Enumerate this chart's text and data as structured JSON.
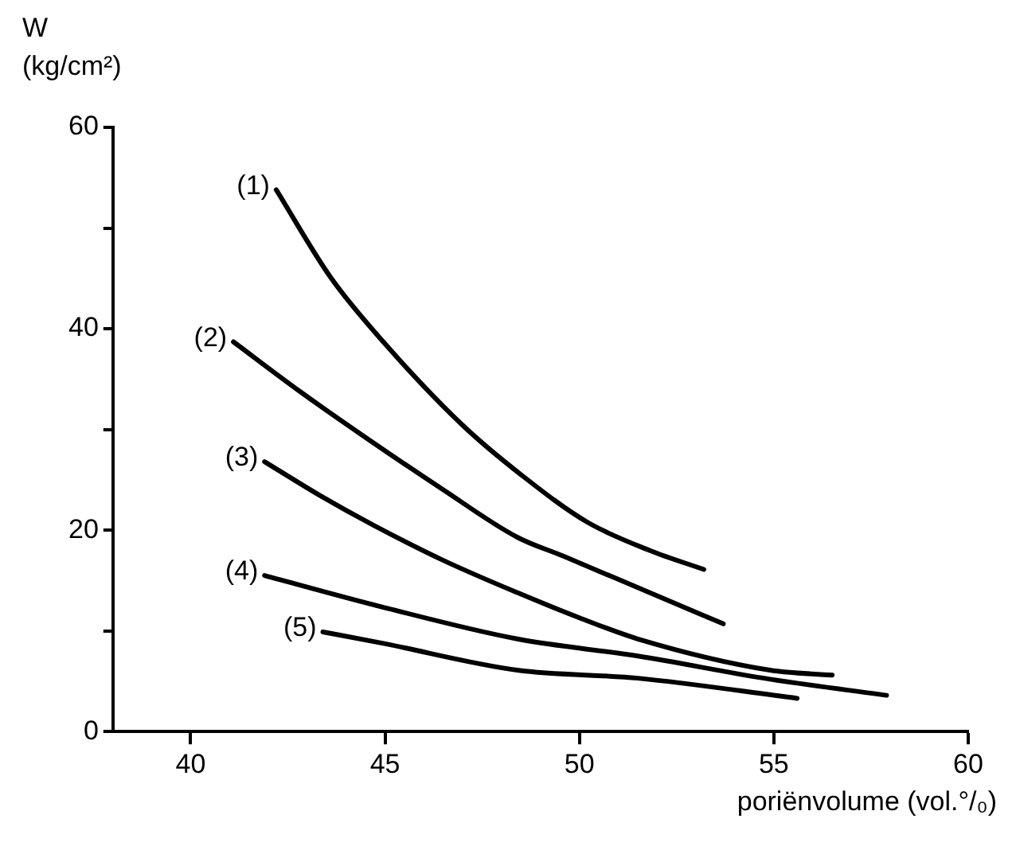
{
  "chart_data": {
    "type": "line",
    "xlabel": "poriënvolume (vol.°/₀)",
    "ylabel": "W\n(kg/cm²)",
    "xlim": [
      38,
      60
    ],
    "xticks": [
      40,
      45,
      50,
      55,
      60
    ],
    "ylim": [
      0,
      60
    ],
    "yticks": [
      0,
      {
        "value": 10,
        "label": null
      },
      20,
      {
        "value": 30,
        "label": null
      },
      40,
      {
        "value": 50,
        "label": null
      },
      60
    ],
    "legend": false,
    "marker": "none",
    "line_style": "solid",
    "series": [
      {
        "name": "(1)",
        "color": "#000000",
        "x": [
          42.2,
          43.6,
          45.0,
          47.0,
          48.5,
          50.2,
          51.8,
          53.2
        ],
        "values": [
          53.8,
          45.1,
          38.5,
          30.4,
          25.5,
          20.8,
          18.0,
          16.1
        ]
      },
      {
        "name": "(2)",
        "color": "#000000",
        "x": [
          41.1,
          42.8,
          44.5,
          46.5,
          48.4,
          49.6,
          51.8,
          53.7
        ],
        "values": [
          38.7,
          33.8,
          29.2,
          24.0,
          19.3,
          17.4,
          13.8,
          10.7
        ]
      },
      {
        "name": "(3)",
        "color": "#000000",
        "x": [
          41.9,
          43.3,
          44.7,
          46.5,
          48.4,
          50.0,
          51.5,
          54.9,
          56.5
        ],
        "values": [
          26.8,
          23.5,
          20.5,
          17.0,
          13.8,
          11.3,
          9.2,
          6.1,
          5.6
        ]
      },
      {
        "name": "(4)",
        "color": "#000000",
        "x": [
          41.9,
          44.9,
          48.4,
          51.5,
          54.9,
          57.9
        ],
        "values": [
          15.5,
          12.4,
          9.2,
          7.5,
          5.2,
          3.6
        ]
      },
      {
        "name": "(5)",
        "color": "#000000",
        "x": [
          43.4,
          44.9,
          48.4,
          51.5,
          55.6
        ],
        "values": [
          9.9,
          8.8,
          6.1,
          5.3,
          3.3
        ]
      }
    ]
  }
}
